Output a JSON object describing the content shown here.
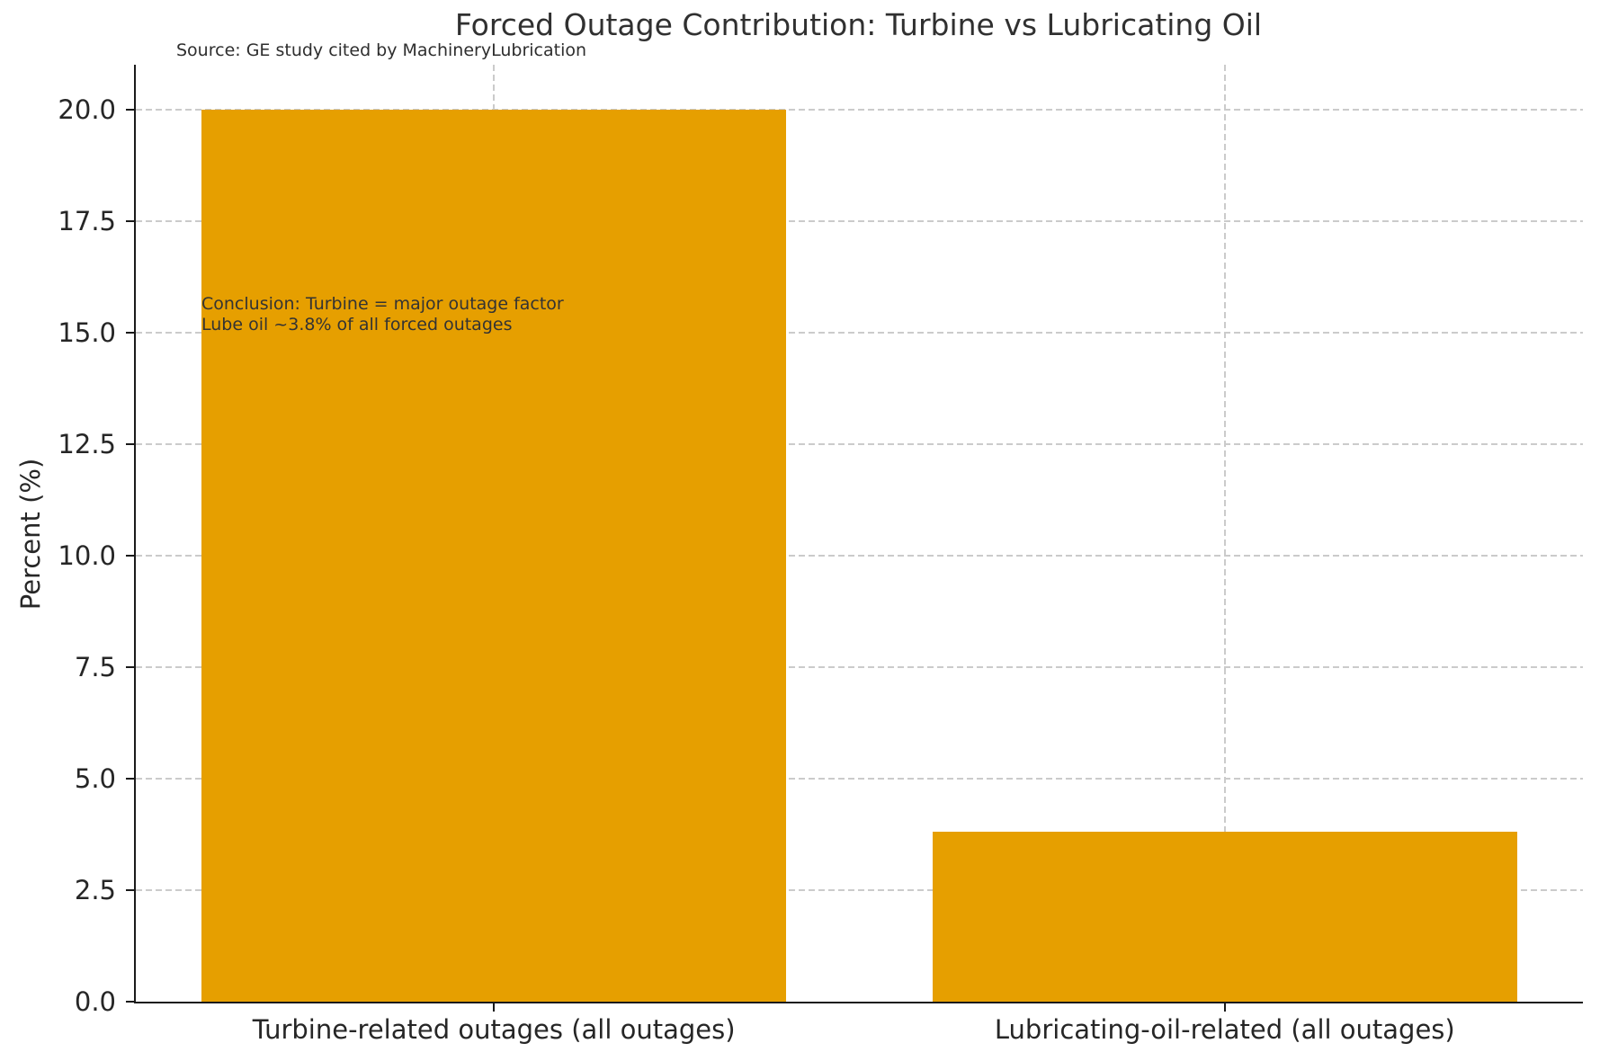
{
  "chart_data": {
    "type": "bar",
    "title": "Forced Outage Contribution: Turbine vs Lubricating Oil",
    "source_note": "Source: GE study cited by MachineryLubrication",
    "categories": [
      "Turbine-related outages (all outages)",
      "Lubricating-oil-related (all outages)"
    ],
    "values": [
      20.0,
      3.8
    ],
    "xlabel": "",
    "ylabel": "Percent (%)",
    "ylim": [
      0,
      21
    ],
    "xlim": [
      -0.49,
      1.49
    ],
    "yticks": [
      0.0,
      2.5,
      5.0,
      7.5,
      10.0,
      12.5,
      15.0,
      17.5,
      20.0
    ],
    "ytick_label_decimals": 1,
    "bar_width": 0.8,
    "grid": true,
    "legend": "none",
    "annotation": [
      "Conclusion: Turbine = major outage factor",
      "Lube oil ~3.8% of all forced outages"
    ]
  },
  "colors": {
    "bar": "#E69F00",
    "grid": "#cbcbcb",
    "axis": "#1a1a1a",
    "text": "#262626",
    "background": "#ffffff"
  }
}
